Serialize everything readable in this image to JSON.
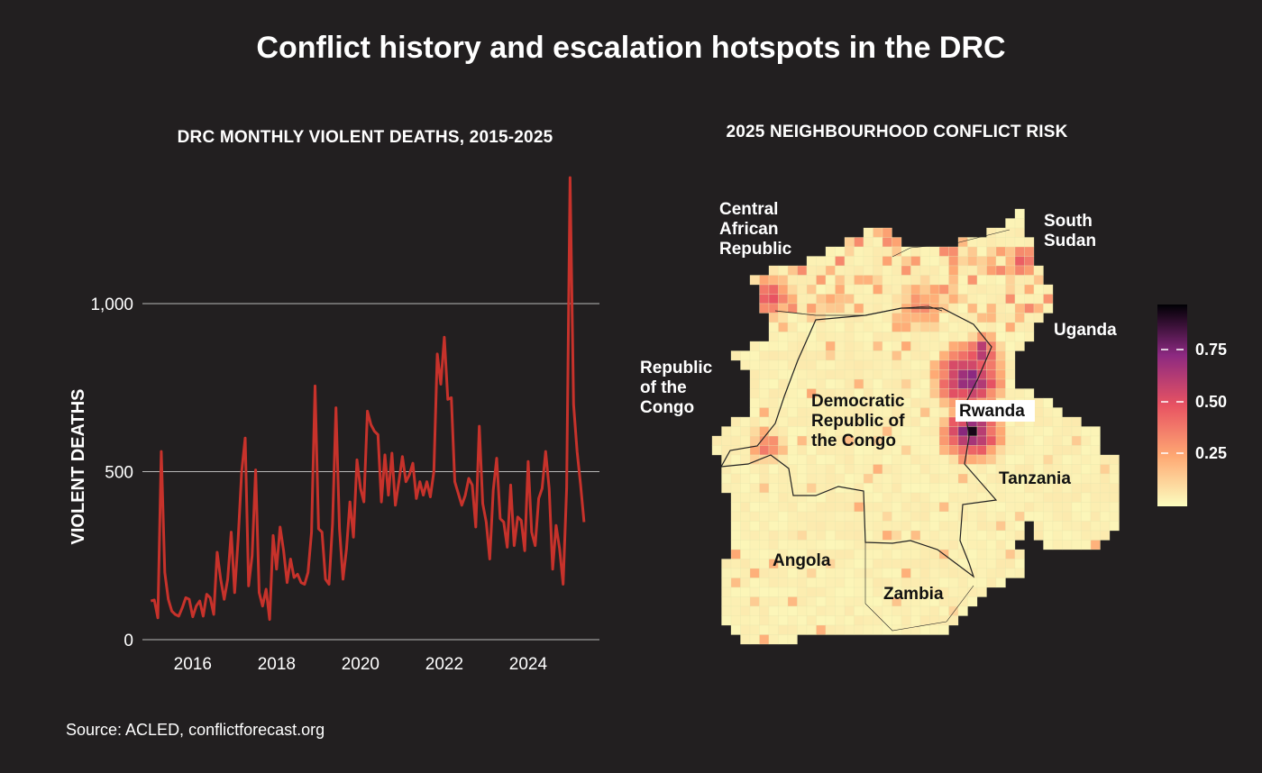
{
  "title": "Conflict history and escalation hotspots in the DRC",
  "source": "Source: ACLED, conflictforecast.org",
  "colors": {
    "background": "#221f20",
    "line": "#c7322b",
    "grid": "#b8b8b8",
    "map_low": "#fcfdbf",
    "map_high": "#1a0d2e"
  },
  "chart_data": [
    {
      "type": "line",
      "title": "DRC MONTHLY VIOLENT DEATHS, 2015-2025",
      "xlabel": "",
      "ylabel": "VIOLENT DEATHS",
      "xlim": [
        2014.8,
        2025.7
      ],
      "ylim": [
        0,
        1400
      ],
      "x_ticks": [
        2016,
        2018,
        2020,
        2022,
        2024
      ],
      "x_tick_labels": [
        "2016",
        "2018",
        "2020",
        "2022",
        "2024"
      ],
      "y_ticks": [
        0,
        500,
        1000
      ],
      "y_tick_labels": [
        "0",
        "500",
        "1,000"
      ],
      "grid": "horizontal",
      "series": [
        {
          "start_year": 2015,
          "frequency": "monthly",
          "values": [
            115,
            118,
            65,
            560,
            200,
            120,
            85,
            75,
            70,
            95,
            125,
            120,
            68,
            100,
            115,
            70,
            135,
            125,
            75,
            260,
            180,
            120,
            180,
            320,
            140,
            300,
            500,
            600,
            160,
            250,
            505,
            140,
            100,
            150,
            60,
            310,
            210,
            335,
            265,
            170,
            240,
            185,
            195,
            170,
            165,
            200,
            320,
            755,
            330,
            320,
            180,
            165,
            345,
            690,
            330,
            180,
            270,
            410,
            305,
            535,
            450,
            410,
            680,
            640,
            620,
            610,
            410,
            550,
            430,
            555,
            400,
            470,
            545,
            470,
            490,
            525,
            420,
            470,
            430,
            470,
            425,
            500,
            850,
            760,
            900,
            715,
            720,
            470,
            435,
            400,
            430,
            480,
            460,
            335,
            635,
            405,
            350,
            240,
            445,
            540,
            360,
            350,
            275,
            460,
            280,
            365,
            355,
            265,
            530,
            320,
            280,
            420,
            450,
            560,
            450,
            210,
            340,
            270,
            165,
            450,
            1375,
            700,
            560,
            460,
            350
          ]
        }
      ]
    },
    {
      "type": "heatmap",
      "title": "2025 NEIGHBOURHOOD CONFLICT RISK",
      "legend_ticks": [
        "0.25",
        "0.50",
        "0.75"
      ],
      "countries": [
        {
          "name": "Central African Republic",
          "lines": [
            "Central",
            "African",
            "Republic"
          ]
        },
        {
          "name": "South Sudan",
          "lines": [
            "South",
            "Sudan"
          ]
        },
        {
          "name": "Uganda",
          "lines": [
            "Uganda"
          ]
        },
        {
          "name": "Republic of the Congo",
          "lines": [
            "Republic",
            "of the",
            "Congo"
          ]
        },
        {
          "name": "Democratic Republic of the Congo",
          "lines": [
            "Democratic",
            "Republic of",
            "the Congo"
          ]
        },
        {
          "name": "Rwanda",
          "lines": [
            "Rwanda"
          ]
        },
        {
          "name": "Tanzania",
          "lines": [
            "Tanzania"
          ]
        },
        {
          "name": "Angola",
          "lines": [
            "Angola"
          ]
        },
        {
          "name": "Zambia",
          "lines": [
            "Zambia"
          ]
        }
      ]
    }
  ]
}
